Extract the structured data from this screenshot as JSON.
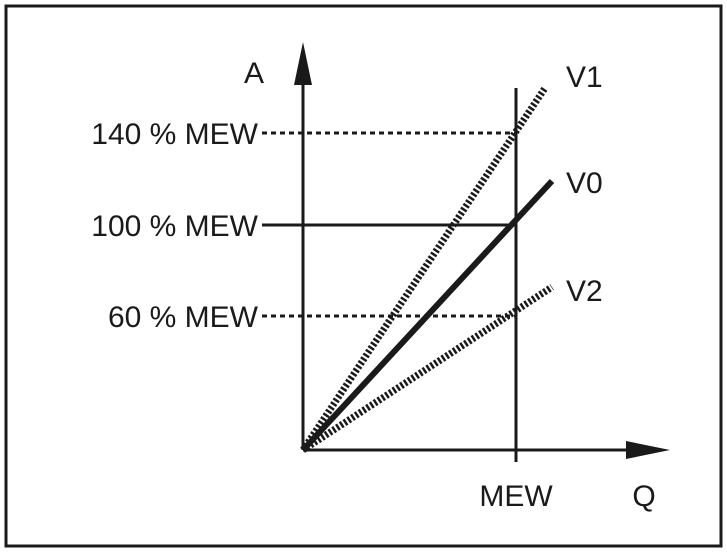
{
  "diagram": {
    "y_axis_label": "A",
    "x_axis_label": "Q",
    "x_marker_label": "MEW",
    "levels": [
      {
        "label": "140 % MEW",
        "style": "dashed"
      },
      {
        "label": "100 % MEW",
        "style": "solid"
      },
      {
        "label": "60 % MEW",
        "style": "dashed"
      }
    ],
    "curves": [
      {
        "label": "V1",
        "style": "hatched"
      },
      {
        "label": "V0",
        "style": "solid"
      },
      {
        "label": "V2",
        "style": "hatched"
      }
    ]
  }
}
